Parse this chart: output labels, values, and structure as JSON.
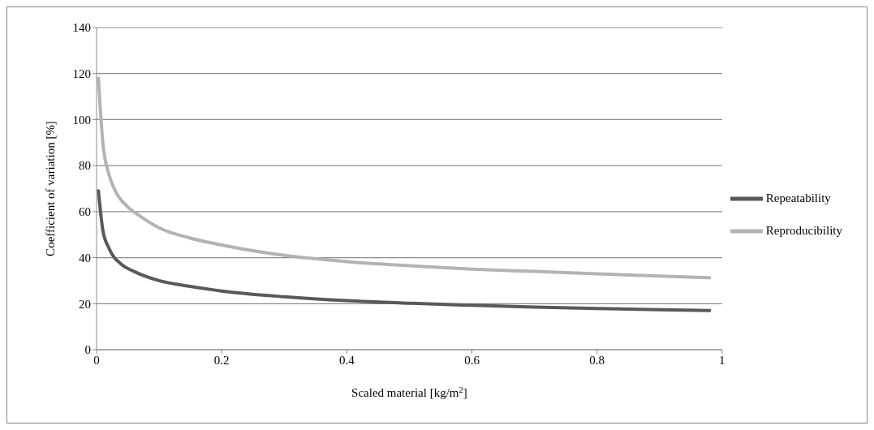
{
  "chart_data": {
    "type": "line",
    "xlabel": "Scaled material [kg/m$^{2}$]",
    "ylabel": "Coefficient of variation [%]",
    "xlim": [
      0,
      1
    ],
    "xticks": [
      0,
      0.2,
      0.4,
      0.6,
      0.8,
      1
    ],
    "ylim": [
      0,
      140
    ],
    "yticks": [
      0,
      20,
      40,
      60,
      80,
      100,
      120,
      140
    ],
    "grid": "y",
    "legend": "right",
    "marker": "none",
    "line_style": "solid",
    "series": [
      {
        "name": "Repeatability",
        "color": "#595959",
        "x": [
          0.003,
          0.01,
          0.02,
          0.04,
          0.06,
          0.1,
          0.15,
          0.2,
          0.3,
          0.4,
          0.5,
          0.6,
          0.7,
          0.8,
          0.9,
          0.98
        ],
        "values": [
          69,
          52,
          44,
          37,
          34,
          30,
          27.5,
          25.5,
          23,
          21.3,
          20.2,
          19.3,
          18.5,
          17.9,
          17.4,
          17
        ]
      },
      {
        "name": "Reproducibility",
        "color": "#b3b3b3",
        "x": [
          0.003,
          0.01,
          0.02,
          0.03,
          0.05,
          0.07,
          0.1,
          0.15,
          0.2,
          0.3,
          0.4,
          0.5,
          0.6,
          0.7,
          0.8,
          0.9,
          0.98
        ],
        "values": [
          118,
          90,
          76,
          69,
          62,
          58,
          53,
          48.5,
          45.5,
          41,
          38.3,
          36.5,
          35,
          34,
          33,
          32,
          31.3
        ]
      }
    ]
  }
}
